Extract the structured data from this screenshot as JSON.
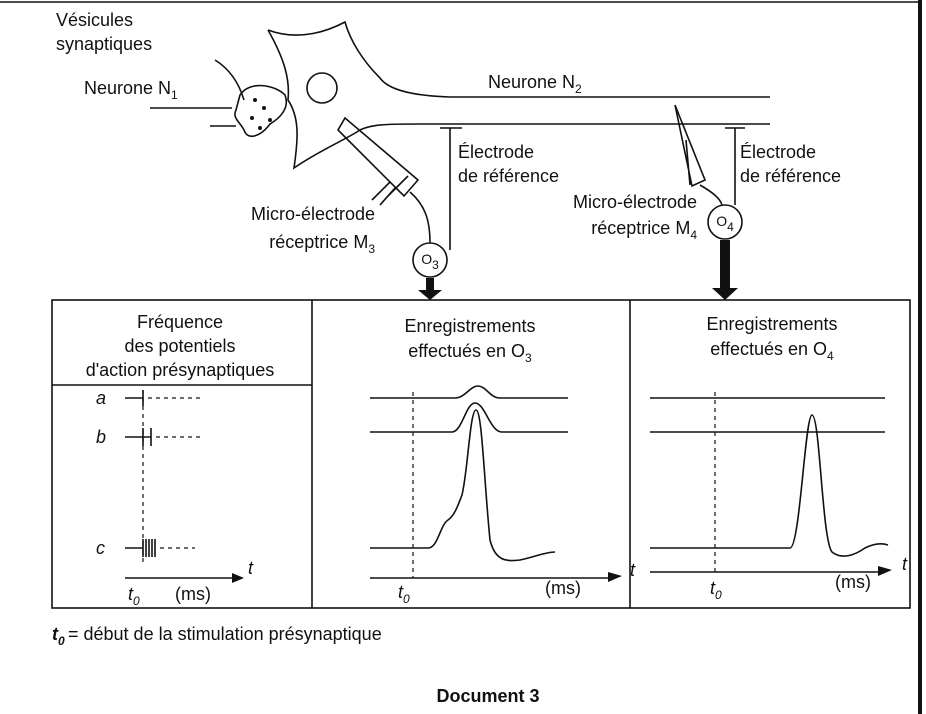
{
  "diagram": {
    "vesicles": [
      "Vésicules",
      "synaptiques"
    ],
    "neuron1": {
      "text": "Neurone N",
      "sub": "1"
    },
    "neuron2": {
      "text": "Neurone N",
      "sub": "2"
    },
    "reference_electrode_3": [
      "Électrode",
      "de référence"
    ],
    "reference_electrode_4": [
      "Électrode",
      "de référence"
    ],
    "micro_electrode_3": [
      "Micro-électrode",
      {
        "text": "réceptrice M",
        "sub": "3"
      }
    ],
    "micro_electrode_4": [
      "Micro-électrode",
      {
        "text": "réceptrice M",
        "sub": "4"
      }
    ],
    "oscilloscope_3": {
      "text": "O",
      "sub": "3"
    },
    "oscilloscope_4": {
      "text": "O",
      "sub": "4"
    }
  },
  "table": {
    "columns": [
      {
        "header": [
          "Fréquence",
          "des potentiels",
          "d'action présynaptiques"
        ],
        "rows": [
          "a",
          "b",
          "c"
        ],
        "axis_label": "t",
        "t0": {
          "text": "t",
          "sub": "0"
        },
        "unit": "(ms)"
      },
      {
        "header": [
          "Enregistrements",
          {
            "text": "effectués  en O",
            "sub": "3"
          }
        ],
        "axis_label": "t",
        "t0": {
          "text": "t",
          "sub": "0"
        },
        "unit": "(ms)"
      },
      {
        "header": [
          "Enregistrements",
          {
            "text": "effectués  en O",
            "sub": "4"
          }
        ],
        "axis_label": "t",
        "t0": {
          "text": "t",
          "sub": "0"
        },
        "unit": "(ms)"
      }
    ]
  },
  "caption": {
    "symbol": {
      "text": "t",
      "sub": "0"
    },
    "text": "= début de la stimulation présynaptique"
  },
  "title": "Document 3"
}
